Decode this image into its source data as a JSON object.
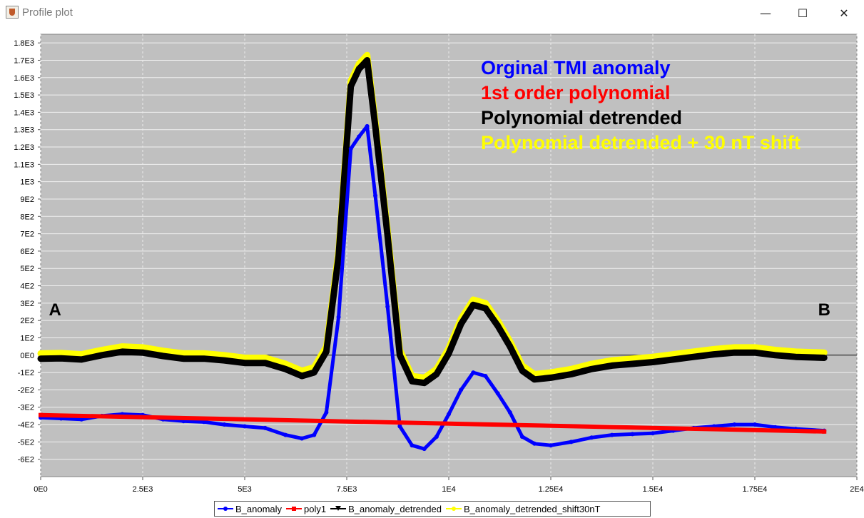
{
  "window": {
    "title": "Profile plot",
    "minimize_glyph": "—",
    "maximize_glyph": "☐",
    "close_glyph": "✕"
  },
  "chart_data": {
    "type": "line",
    "xlim": [
      0,
      20000
    ],
    "ylim": [
      -700,
      1850
    ],
    "x_ticks": [
      0,
      2500,
      5000,
      7500,
      10000,
      12500,
      15000,
      17500,
      20000
    ],
    "x_tick_labels": [
      "0E0",
      "2.5E3",
      "5E3",
      "7.5E3",
      "1E4",
      "1.25E4",
      "1.5E4",
      "1.75E4",
      "2E4"
    ],
    "y_ticks": [
      1800,
      1700,
      1600,
      1500,
      1400,
      1300,
      1200,
      1100,
      1000,
      900,
      800,
      700,
      600,
      500,
      400,
      300,
      200,
      100,
      0,
      -100,
      -200,
      -300,
      -400,
      -500,
      -600
    ],
    "y_tick_labels": [
      "1.8E3",
      "1.7E3",
      "1.6E3",
      "1.5E3",
      "1.4E3",
      "1.3E3",
      "1.2E3",
      "1.1E3",
      "1E3",
      "9E2",
      "8E2",
      "7E2",
      "6E2",
      "5E2",
      "4E2",
      "3E2",
      "2E2",
      "1E2",
      "0E0",
      "-1E2",
      "-2E2",
      "-3E2",
      "-4E2",
      "-5E2",
      "-6E2"
    ],
    "grid": true,
    "background": "#c0c0c0",
    "zero_line": true,
    "annotations": [
      {
        "text": "Orginal TMI anomaly",
        "color": "#0000ff"
      },
      {
        "text": "1st order polynomial",
        "color": "#ff0000"
      },
      {
        "text": "Polynomial detrended",
        "color": "#000000"
      },
      {
        "text": "Polynomial detrended + 30 nT shift",
        "color": "#ffff00"
      }
    ],
    "point_labels": [
      {
        "text": "A",
        "x": 200,
        "y": 230
      },
      {
        "text": "B",
        "x": 19050,
        "y": 230
      }
    ],
    "legend_position": "bottom",
    "series": [
      {
        "name": "B_anomaly_detrended_shift30nT",
        "color": "#ffff00",
        "marker": "circle",
        "x": [
          0,
          500,
          1000,
          1500,
          2000,
          2500,
          3000,
          3500,
          4000,
          4500,
          5000,
          5500,
          6000,
          6400,
          6700,
          7000,
          7300,
          7600,
          7800,
          8000,
          8200,
          8500,
          8800,
          9100,
          9400,
          9700,
          10000,
          10300,
          10600,
          10900,
          11200,
          11500,
          11800,
          12100,
          12500,
          13000,
          13500,
          14000,
          14500,
          15000,
          15500,
          16000,
          16500,
          17000,
          17500,
          18000,
          18500,
          19200
        ],
        "y": [
          10,
          12,
          5,
          30,
          50,
          45,
          25,
          10,
          10,
          0,
          -15,
          -15,
          -50,
          -90,
          -70,
          50,
          600,
          1580,
          1680,
          1730,
          1350,
          720,
          30,
          -120,
          -130,
          -80,
          40,
          210,
          320,
          300,
          200,
          80,
          -60,
          -110,
          -100,
          -80,
          -50,
          -30,
          -20,
          -10,
          5,
          20,
          35,
          45,
          45,
          30,
          20,
          15
        ]
      },
      {
        "name": "B_anomaly_detrended",
        "color": "#000000",
        "marker": "triangle",
        "x": [
          0,
          500,
          1000,
          1500,
          2000,
          2500,
          3000,
          3500,
          4000,
          4500,
          5000,
          5500,
          6000,
          6400,
          6700,
          7000,
          7300,
          7600,
          7800,
          8000,
          8200,
          8500,
          8800,
          9100,
          9400,
          9700,
          10000,
          10300,
          10600,
          10900,
          11200,
          11500,
          11800,
          12100,
          12500,
          13000,
          13500,
          14000,
          14500,
          15000,
          15500,
          16000,
          16500,
          17000,
          17500,
          18000,
          18500,
          19200
        ],
        "y": [
          -20,
          -18,
          -25,
          0,
          20,
          15,
          -5,
          -20,
          -20,
          -30,
          -45,
          -45,
          -80,
          -120,
          -100,
          20,
          570,
          1550,
          1650,
          1700,
          1320,
          690,
          0,
          -150,
          -160,
          -110,
          10,
          180,
          290,
          270,
          170,
          50,
          -90,
          -140,
          -130,
          -110,
          -80,
          -60,
          -50,
          -40,
          -25,
          -10,
          5,
          15,
          15,
          0,
          -10,
          -15
        ]
      },
      {
        "name": "B_anomaly",
        "color": "#0000ff",
        "marker": "circle",
        "x": [
          0,
          500,
          1000,
          1500,
          2000,
          2500,
          3000,
          3500,
          4000,
          4500,
          5000,
          5500,
          6000,
          6400,
          6700,
          7000,
          7300,
          7600,
          7800,
          8000,
          8200,
          8500,
          8800,
          9100,
          9400,
          9700,
          10000,
          10300,
          10600,
          10900,
          11200,
          11500,
          11800,
          12100,
          12500,
          13000,
          13500,
          14000,
          14500,
          15000,
          15500,
          16000,
          16500,
          17000,
          17500,
          18000,
          18500,
          19200
        ],
        "y": [
          -360,
          -365,
          -370,
          -350,
          -340,
          -345,
          -370,
          -380,
          -385,
          -400,
          -410,
          -420,
          -460,
          -480,
          -460,
          -330,
          220,
          1190,
          1260,
          1320,
          920,
          280,
          -410,
          -520,
          -540,
          -470,
          -340,
          -200,
          -100,
          -120,
          -220,
          -330,
          -470,
          -510,
          -520,
          -500,
          -475,
          -460,
          -455,
          -450,
          -435,
          -420,
          -410,
          -400,
          -400,
          -415,
          -425,
          -435
        ]
      },
      {
        "name": "poly1",
        "color": "#ff0000",
        "marker": "square",
        "x": [
          0,
          19200
        ],
        "y": [
          -345,
          -440
        ]
      }
    ]
  },
  "legend": [
    {
      "label": "B_anomaly",
      "color": "#0000ff",
      "marker": "circle"
    },
    {
      "label": "poly1",
      "color": "#ff0000",
      "marker": "square"
    },
    {
      "label": "B_anomaly_detrended",
      "color": "#000000",
      "marker": "triangle"
    },
    {
      "label": "B_anomaly_detrended_shift30nT",
      "color": "#ffff00",
      "marker": "circle"
    }
  ]
}
